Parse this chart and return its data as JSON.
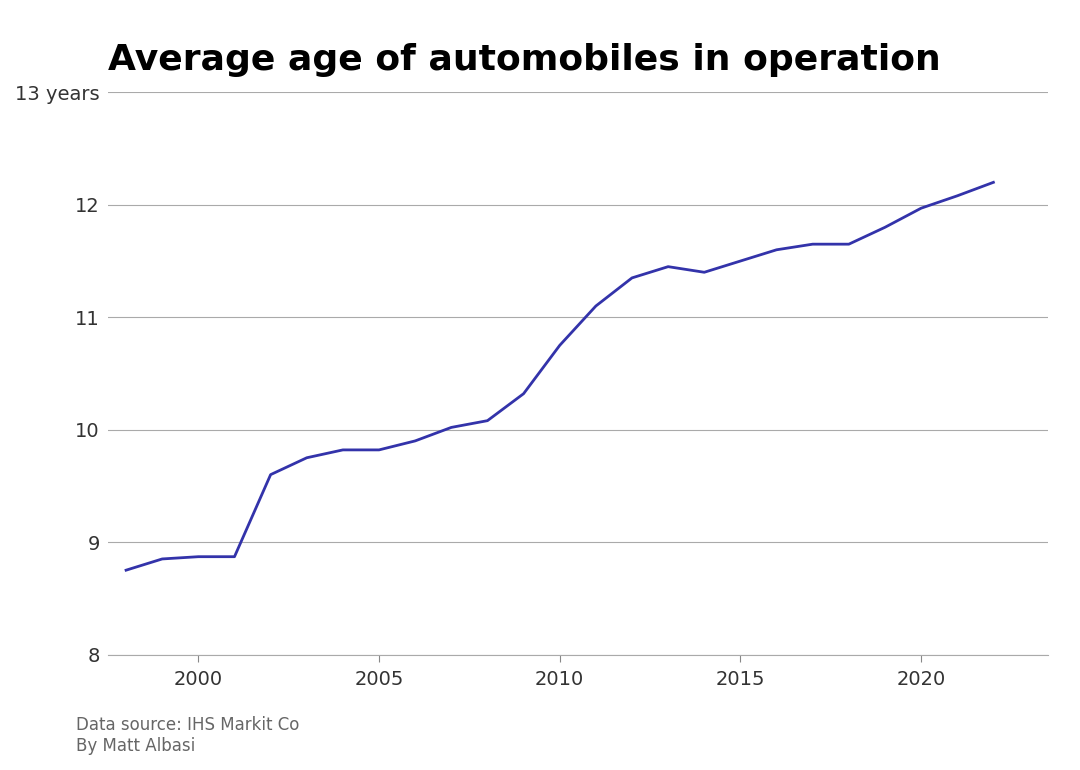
{
  "title": "Average age of automobiles in operation",
  "subtitle_line1": "Data source: IHS Markit Co",
  "subtitle_line2": "By Matt Albasi",
  "years": [
    1998,
    1999,
    2000,
    2001,
    2002,
    2003,
    2004,
    2005,
    2006,
    2007,
    2008,
    2009,
    2010,
    2011,
    2012,
    2013,
    2014,
    2015,
    2016,
    2017,
    2018,
    2019,
    2020,
    2021,
    2022
  ],
  "values": [
    8.75,
    8.85,
    8.87,
    8.87,
    9.6,
    9.75,
    9.82,
    9.82,
    9.9,
    10.02,
    10.08,
    10.32,
    10.75,
    11.1,
    11.35,
    11.45,
    11.4,
    11.5,
    11.6,
    11.65,
    11.65,
    11.8,
    11.97,
    12.08,
    12.2
  ],
  "line_color": "#3333aa",
  "line_width": 2.0,
  "ylim": [
    8.0,
    13.0
  ],
  "yticks": [
    8,
    9,
    10,
    11,
    12,
    13
  ],
  "ytick_labels": [
    "8",
    "9",
    "10",
    "11",
    "12",
    "13 years"
  ],
  "xlim": [
    1997.5,
    2023.5
  ],
  "xticks": [
    2000,
    2005,
    2010,
    2015,
    2020
  ],
  "background_color": "#ffffff",
  "grid_color": "#aaaaaa",
  "title_fontsize": 26,
  "axis_fontsize": 14,
  "annotation_fontsize": 12
}
